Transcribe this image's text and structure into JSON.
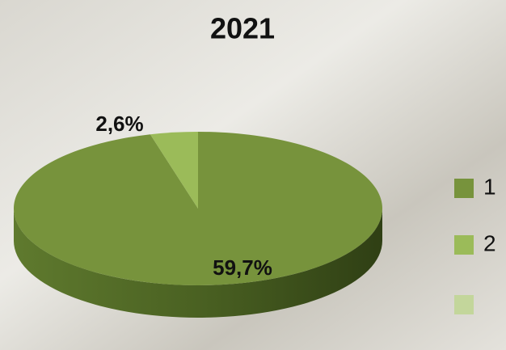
{
  "chart_data": {
    "type": "pie",
    "title": "2021",
    "categories": [
      "1",
      "2",
      null
    ],
    "values": [
      59.7,
      2.6,
      null
    ],
    "value_labels": [
      "59,7%",
      "2,6%",
      null
    ],
    "colors": [
      "#77933c",
      "#9bbb59",
      "#c3d69b"
    ]
  }
}
